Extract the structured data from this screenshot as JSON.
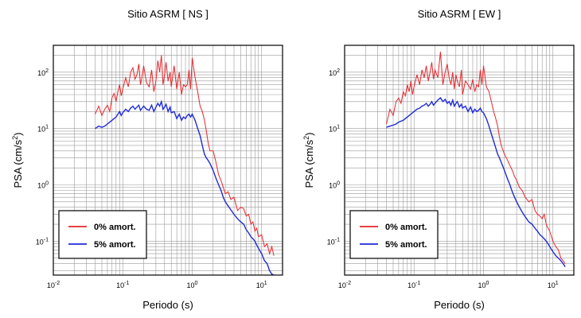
{
  "chart_data": [
    {
      "type": "line",
      "title": "Sitio ASRM [ NS ]",
      "xlabel": "Periodo (s)",
      "ylabel_main": "PSA (cm/s",
      "ylabel_sup": "2",
      "ylabel_end": ")",
      "x_scale": "log",
      "y_scale": "log",
      "xlim": [
        0.01,
        20
      ],
      "ylim": [
        0.025,
        300
      ],
      "grid": true,
      "x_tick_labels": [
        {
          "mant": "10",
          "exp": "-2",
          "value": 0.01
        },
        {
          "mant": "10",
          "exp": "-1",
          "value": 0.1
        },
        {
          "mant": "10",
          "exp": "0",
          "value": 1
        },
        {
          "mant": "10",
          "exp": "1",
          "value": 10
        }
      ],
      "y_tick_labels": [
        {
          "mant": "10",
          "exp": "-1",
          "value": 0.1
        },
        {
          "mant": "10",
          "exp": "0",
          "value": 1
        },
        {
          "mant": "10",
          "exp": "1",
          "value": 10
        },
        {
          "mant": "10",
          "exp": "2",
          "value": 100
        }
      ],
      "legend_position": "bottom-left",
      "series": [
        {
          "name": "0% amort.",
          "color": "#e8252a",
          "x": [
            0.04,
            0.045,
            0.05,
            0.055,
            0.06,
            0.065,
            0.07,
            0.075,
            0.08,
            0.085,
            0.09,
            0.095,
            0.1,
            0.11,
            0.12,
            0.13,
            0.14,
            0.15,
            0.16,
            0.17,
            0.18,
            0.19,
            0.2,
            0.22,
            0.24,
            0.26,
            0.28,
            0.3,
            0.32,
            0.34,
            0.36,
            0.38,
            0.4,
            0.42,
            0.45,
            0.48,
            0.5,
            0.55,
            0.6,
            0.65,
            0.7,
            0.75,
            0.8,
            0.85,
            0.9,
            0.95,
            1.0,
            1.1,
            1.2,
            1.3,
            1.4,
            1.5,
            1.6,
            1.7,
            1.8,
            2.0,
            2.2,
            2.4,
            2.6,
            2.8,
            3.0,
            3.3,
            3.6,
            4.0,
            4.5,
            5.0,
            5.5,
            6.0,
            6.5,
            7.0,
            7.5,
            8.0,
            8.5,
            9.0,
            10.0,
            11.0,
            12.0,
            13.0,
            14.0,
            15.0
          ],
          "values": [
            18,
            25,
            17,
            22,
            26,
            20,
            35,
            42,
            30,
            45,
            60,
            38,
            50,
            80,
            55,
            100,
            120,
            75,
            90,
            140,
            60,
            85,
            130,
            65,
            55,
            110,
            45,
            70,
            160,
            100,
            200,
            60,
            90,
            150,
            70,
            100,
            55,
            130,
            50,
            100,
            40,
            60,
            55,
            60,
            110,
            50,
            180,
            80,
            45,
            25,
            20,
            14,
            9,
            5.5,
            4,
            4,
            2.5,
            1.5,
            1.2,
            0.9,
            0.7,
            0.75,
            0.55,
            0.6,
            0.35,
            0.4,
            0.38,
            0.28,
            0.3,
            0.2,
            0.22,
            0.15,
            0.17,
            0.12,
            0.13,
            0.08,
            0.09,
            0.06,
            0.08,
            0.055
          ]
        },
        {
          "name": "5% amort.",
          "color": "#1f2bd6",
          "x": [
            0.04,
            0.045,
            0.05,
            0.055,
            0.06,
            0.065,
            0.07,
            0.075,
            0.08,
            0.085,
            0.09,
            0.095,
            0.1,
            0.11,
            0.12,
            0.13,
            0.14,
            0.15,
            0.16,
            0.17,
            0.18,
            0.19,
            0.2,
            0.22,
            0.24,
            0.26,
            0.28,
            0.3,
            0.32,
            0.34,
            0.36,
            0.38,
            0.4,
            0.42,
            0.45,
            0.48,
            0.5,
            0.55,
            0.6,
            0.65,
            0.7,
            0.75,
            0.8,
            0.85,
            0.9,
            0.95,
            1.0,
            1.1,
            1.2,
            1.3,
            1.4,
            1.5,
            1.6,
            1.7,
            1.8,
            2.0,
            2.2,
            2.4,
            2.6,
            2.8,
            3.0,
            3.3,
            3.6,
            4.0,
            4.5,
            5.0,
            5.5,
            6.0,
            6.5,
            7.0,
            7.5,
            8.0,
            8.5,
            9.0,
            10.0,
            11.0,
            12.0,
            13.0,
            14.0,
            15.0
          ],
          "values": [
            10,
            11,
            10.5,
            11,
            12,
            13,
            14,
            15,
            16,
            18,
            20,
            17,
            19,
            22,
            20,
            23,
            25,
            22,
            24,
            26,
            21,
            23,
            25,
            22,
            21,
            26,
            20,
            24,
            28,
            25,
            30,
            22,
            24,
            27,
            20,
            24,
            19,
            20,
            15,
            18,
            14,
            16,
            15,
            17,
            18,
            16,
            18,
            14,
            10,
            7.5,
            5,
            3.5,
            3,
            2.7,
            2.4,
            1.8,
            1.3,
            1.0,
            0.8,
            0.6,
            0.5,
            0.42,
            0.36,
            0.3,
            0.25,
            0.22,
            0.2,
            0.16,
            0.14,
            0.12,
            0.11,
            0.1,
            0.085,
            0.075,
            0.06,
            0.045,
            0.04,
            0.03,
            0.026,
            0.025
          ]
        }
      ]
    },
    {
      "type": "line",
      "title": "Sitio ASRM [ EW ]",
      "xlabel": "Periodo (s)",
      "ylabel_main": "PSA (cm/s",
      "ylabel_sup": "2",
      "ylabel_end": ")",
      "x_scale": "log",
      "y_scale": "log",
      "xlim": [
        0.01,
        20
      ],
      "ylim": [
        0.025,
        300
      ],
      "grid": true,
      "x_tick_labels": [
        {
          "mant": "10",
          "exp": "-2",
          "value": 0.01
        },
        {
          "mant": "10",
          "exp": "-1",
          "value": 0.1
        },
        {
          "mant": "10",
          "exp": "0",
          "value": 1
        },
        {
          "mant": "10",
          "exp": "1",
          "value": 10
        }
      ],
      "y_tick_labels": [
        {
          "mant": "10",
          "exp": "-1",
          "value": 0.1
        },
        {
          "mant": "10",
          "exp": "0",
          "value": 1
        },
        {
          "mant": "10",
          "exp": "1",
          "value": 10
        },
        {
          "mant": "10",
          "exp": "2",
          "value": 100
        }
      ],
      "legend_position": "bottom-left",
      "series": [
        {
          "name": "0% amort.",
          "color": "#e8252a",
          "x": [
            0.04,
            0.045,
            0.05,
            0.055,
            0.06,
            0.065,
            0.07,
            0.075,
            0.08,
            0.085,
            0.09,
            0.095,
            0.1,
            0.11,
            0.12,
            0.13,
            0.14,
            0.15,
            0.16,
            0.17,
            0.18,
            0.19,
            0.2,
            0.22,
            0.24,
            0.26,
            0.28,
            0.3,
            0.32,
            0.34,
            0.36,
            0.38,
            0.4,
            0.42,
            0.45,
            0.48,
            0.5,
            0.55,
            0.6,
            0.65,
            0.7,
            0.75,
            0.8,
            0.85,
            0.9,
            0.95,
            1.0,
            1.1,
            1.2,
            1.3,
            1.4,
            1.5,
            1.6,
            1.7,
            1.8,
            2.0,
            2.2,
            2.4,
            2.6,
            2.8,
            3.0,
            3.3,
            3.6,
            4.0,
            4.5,
            5.0,
            5.5,
            6.0,
            6.5,
            7.0,
            7.5,
            8.0,
            8.5,
            9.0,
            10.0,
            11.0,
            12.0,
            13.0,
            14.0,
            15.0
          ],
          "values": [
            12,
            22,
            17,
            30,
            35,
            28,
            45,
            38,
            60,
            45,
            70,
            40,
            55,
            90,
            60,
            110,
            80,
            130,
            70,
            100,
            150,
            75,
            110,
            80,
            230,
            60,
            100,
            140,
            80,
            60,
            100,
            50,
            90,
            70,
            55,
            110,
            40,
            70,
            60,
            50,
            75,
            45,
            60,
            55,
            110,
            60,
            130,
            55,
            45,
            30,
            20,
            15,
            11,
            7,
            5,
            3.5,
            2.8,
            2.2,
            1.8,
            1.4,
            1.2,
            0.9,
            0.8,
            0.6,
            0.5,
            0.55,
            0.35,
            0.3,
            0.28,
            0.25,
            0.3,
            0.2,
            0.17,
            0.15,
            0.1,
            0.08,
            0.07,
            0.05,
            0.045,
            0.04
          ]
        },
        {
          "name": "5% amort.",
          "color": "#1f2bd6",
          "x": [
            0.04,
            0.045,
            0.05,
            0.055,
            0.06,
            0.065,
            0.07,
            0.075,
            0.08,
            0.085,
            0.09,
            0.095,
            0.1,
            0.11,
            0.12,
            0.13,
            0.14,
            0.15,
            0.16,
            0.17,
            0.18,
            0.19,
            0.2,
            0.22,
            0.24,
            0.26,
            0.28,
            0.3,
            0.32,
            0.34,
            0.36,
            0.38,
            0.4,
            0.42,
            0.45,
            0.48,
            0.5,
            0.55,
            0.6,
            0.65,
            0.7,
            0.75,
            0.8,
            0.85,
            0.9,
            0.95,
            1.0,
            1.1,
            1.2,
            1.3,
            1.4,
            1.5,
            1.6,
            1.7,
            1.8,
            2.0,
            2.2,
            2.4,
            2.6,
            2.8,
            3.0,
            3.3,
            3.6,
            4.0,
            4.5,
            5.0,
            5.5,
            6.0,
            6.5,
            7.0,
            7.5,
            8.0,
            8.5,
            9.0,
            10.0,
            11.0,
            12.0,
            13.0,
            14.0,
            15.0
          ],
          "values": [
            10.5,
            11,
            11.5,
            12,
            13,
            13.5,
            14,
            15,
            16,
            17,
            18,
            19,
            20,
            22,
            23,
            25,
            26,
            28,
            25,
            27,
            30,
            26,
            28,
            32,
            35,
            30,
            33,
            28,
            30,
            26,
            32,
            25,
            28,
            30,
            24,
            27,
            23,
            25,
            20,
            24,
            19,
            22,
            20,
            21,
            23,
            20,
            19,
            15,
            11,
            8,
            6,
            4.5,
            3.5,
            3,
            2.5,
            1.8,
            1.3,
            1.0,
            0.75,
            0.6,
            0.5,
            0.4,
            0.33,
            0.27,
            0.22,
            0.2,
            0.17,
            0.15,
            0.13,
            0.12,
            0.11,
            0.1,
            0.09,
            0.08,
            0.065,
            0.055,
            0.05,
            0.045,
            0.04,
            0.035
          ]
        }
      ]
    }
  ]
}
